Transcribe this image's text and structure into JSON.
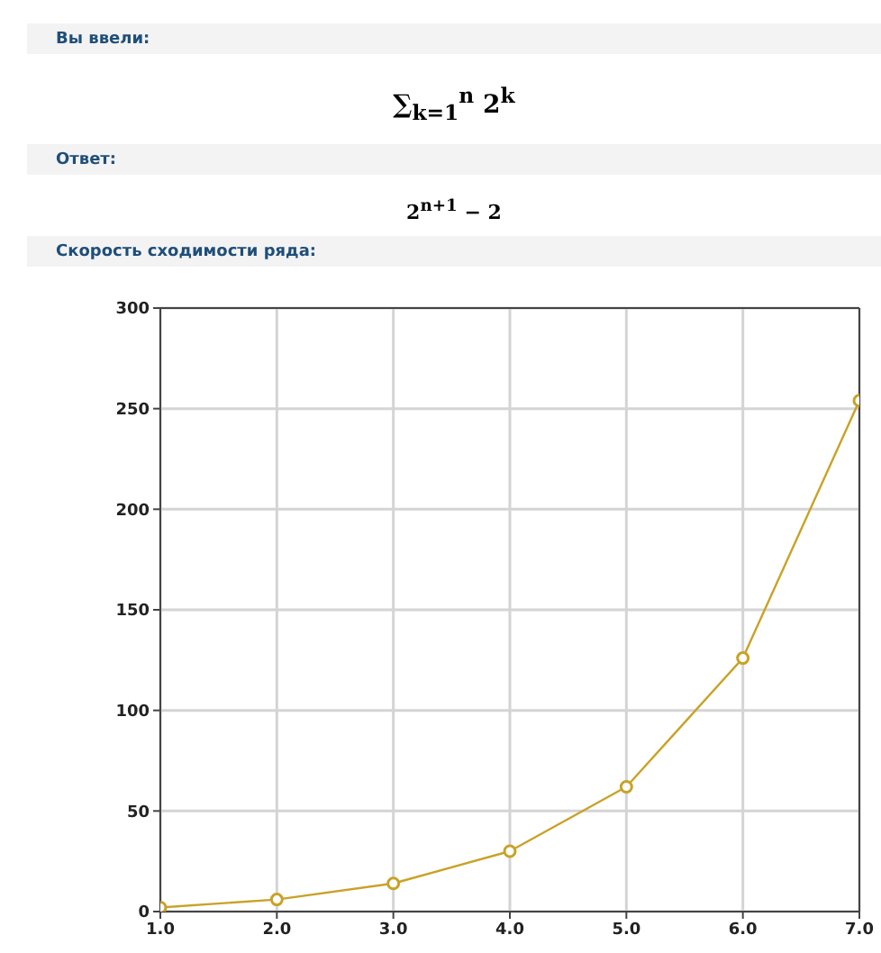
{
  "chart_data": {
    "type": "line",
    "title": "Скорость сходимости ряда:",
    "annotations": [
      "Вы ввели:",
      "∑$_{k=1}$$^{n}$ 2$^{k}$",
      "Ответ:",
      "2$^{n+1}$ − 2"
    ],
    "x": [
      1,
      2,
      3,
      4,
      5,
      6,
      7
    ],
    "series": [
      {
        "color": "#c9a227",
        "values": [
          2,
          6,
          14,
          30,
          62,
          126,
          254
        ]
      }
    ],
    "xlim": [
      1,
      7
    ],
    "xticks": [
      {
        "value": 1,
        "label": "1.0"
      },
      {
        "value": 2,
        "label": "2.0"
      },
      {
        "value": 3,
        "label": "3.0"
      },
      {
        "value": 4,
        "label": "4.0"
      },
      {
        "value": 5,
        "label": "5.0"
      },
      {
        "value": 6,
        "label": "6.0"
      },
      {
        "value": 7,
        "label": "7.0"
      }
    ],
    "ylim": [
      0,
      300
    ],
    "yticks": [
      0,
      50,
      100,
      150,
      200,
      250,
      300
    ],
    "grid": true,
    "marker": "circle",
    "line_style": "solid"
  }
}
